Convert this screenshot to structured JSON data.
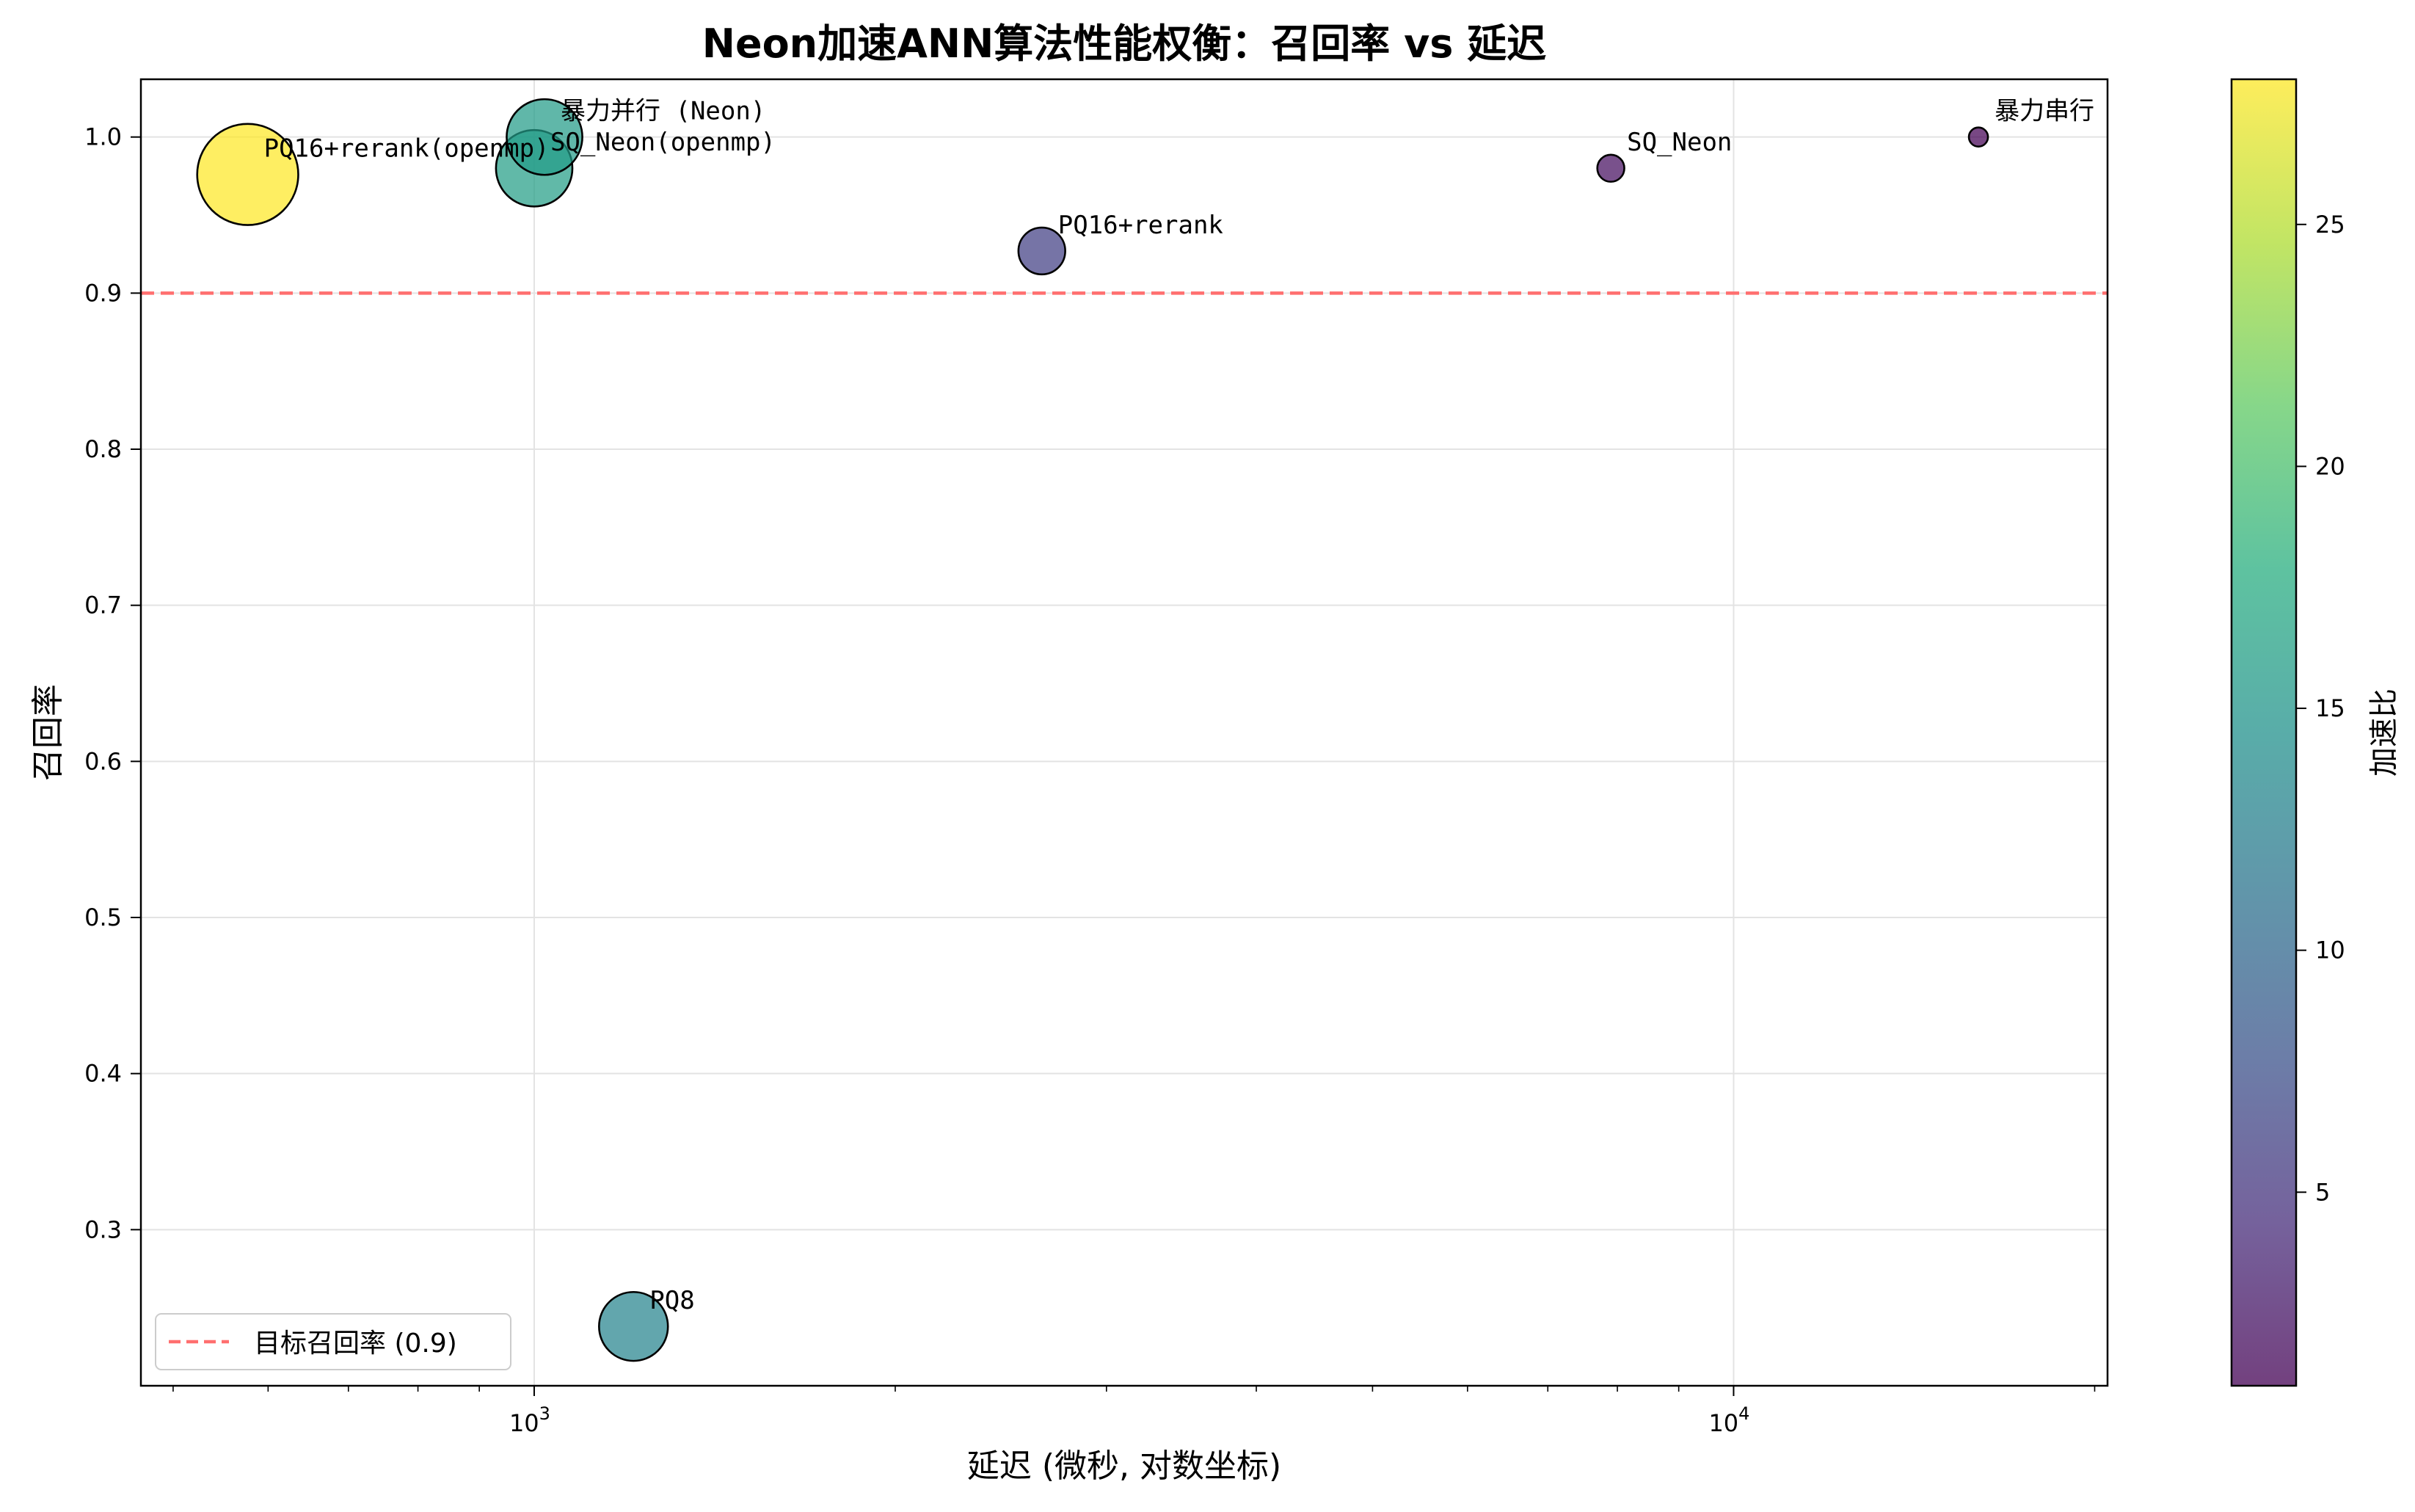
{
  "chart_data": {
    "type": "scatter",
    "title": "Neon加速ANN算法性能权衡：召回率 vs 延迟",
    "xlabel": "延迟 (微秒, 对数坐标)",
    "ylabel": "召回率",
    "x_scale": "log",
    "xlim": [
      470,
      20500
    ],
    "ylim": [
      0.2,
      1.037
    ],
    "x_ticks": [
      {
        "value": 1000,
        "label": "10",
        "exp": "3"
      },
      {
        "value": 10000,
        "label": "10",
        "exp": "4"
      }
    ],
    "y_ticks": [
      {
        "value": 0.3,
        "label": "0.3"
      },
      {
        "value": 0.4,
        "label": "0.4"
      },
      {
        "value": 0.5,
        "label": "0.5"
      },
      {
        "value": 0.6,
        "label": "0.6"
      },
      {
        "value": 0.7,
        "label": "0.7"
      },
      {
        "value": 0.8,
        "label": "0.8"
      },
      {
        "value": 0.9,
        "label": "0.9"
      },
      {
        "value": 1.0,
        "label": "1.0"
      }
    ],
    "grid": true,
    "points": [
      {
        "label": "暴力串行",
        "x": 16000,
        "y": 1.0,
        "speedup": 1.0
      },
      {
        "label": "SQ_Neon",
        "x": 7900,
        "y": 0.98,
        "speedup": 2.0
      },
      {
        "label": "PQ16+rerank",
        "x": 2650,
        "y": 0.927,
        "speedup": 6.0
      },
      {
        "label": "暴力并行 (Neon)",
        "x": 1020,
        "y": 1.0,
        "speedup": 15.7
      },
      {
        "label": "SQ_Neon(openmp)",
        "x": 1000,
        "y": 0.98,
        "speedup": 16.0
      },
      {
        "label": "PQ16+rerank(openmp)",
        "x": 577,
        "y": 0.976,
        "speedup": 28.0
      },
      {
        "label": "PQ8",
        "x": 1210,
        "y": 0.238,
        "speedup": 13.0
      }
    ],
    "reference_line": {
      "y": 0.9,
      "label": "目标召回率 (0.9)",
      "color": "#ff6f6f"
    },
    "legend": {
      "position": "lower-left"
    },
    "colorbar": {
      "label": "加速比",
      "min": 1.0,
      "max": 28.0,
      "colormap": "viridis",
      "ticks": [
        {
          "value": 5,
          "label": "5"
        },
        {
          "value": 10,
          "label": "10"
        },
        {
          "value": 15,
          "label": "15"
        },
        {
          "value": 20,
          "label": "20"
        },
        {
          "value": 25,
          "label": "25"
        }
      ]
    }
  }
}
